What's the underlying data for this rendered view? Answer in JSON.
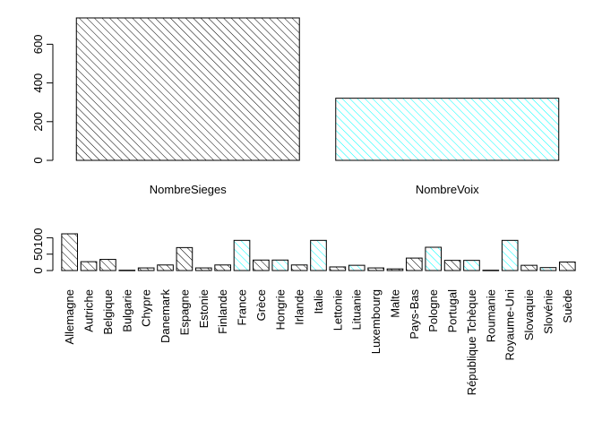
{
  "chart_data": [
    {
      "type": "bar",
      "categories": [
        "NombreSieges",
        "NombreVoix"
      ],
      "values": [
        736,
        321
      ],
      "ylim": [
        0,
        736
      ],
      "yticks": [
        "0",
        "200",
        "400",
        "600"
      ],
      "ytick_values": [
        0,
        200,
        400,
        600
      ],
      "colors": [
        "#000000",
        "#00FFFF"
      ],
      "hatch": true,
      "grid": false
    },
    {
      "type": "bar",
      "categories": [
        "Allemagne",
        "Autriche",
        "Belgique",
        "Bulgarie",
        "Chypre",
        "Danemark",
        "Espagne",
        "Estonie",
        "Finlande",
        "France",
        "Grèce",
        "Hongrie",
        "Irlande",
        "Italie",
        "Lettonie",
        "Lituanie",
        "Luxembourg",
        "Malte",
        "Pays-Bas",
        "Pologne",
        "Portugal",
        "République Tchèque",
        "Roumanie",
        "Royaume-Uni",
        "Slovaquie",
        "Slovénie",
        "Suède"
      ],
      "values": [
        112,
        27,
        34,
        1,
        8,
        17,
        70,
        8,
        17,
        92,
        32,
        32,
        17,
        92,
        11,
        16,
        8,
        5,
        38,
        71,
        31,
        31,
        1,
        92,
        16,
        9,
        26
      ],
      "colors": [
        "#000000",
        "#000000",
        "#000000",
        "#000000",
        "#000000",
        "#000000",
        "#000000",
        "#000000",
        "#000000",
        "#00FFFF",
        "#000000",
        "#00FFFF",
        "#000000",
        "#00FFFF",
        "#000000",
        "#00FFFF",
        "#000000",
        "#000000",
        "#000000",
        "#00FFFF",
        "#000000",
        "#00FFFF",
        "#000000",
        "#00FFFF",
        "#000000",
        "#00FFFF",
        "#000000"
      ],
      "ylim": [
        0,
        112
      ],
      "yticks": [
        "0",
        "50",
        "100"
      ],
      "ytick_values": [
        0,
        50,
        100
      ],
      "hatch": true,
      "grid": false
    }
  ]
}
